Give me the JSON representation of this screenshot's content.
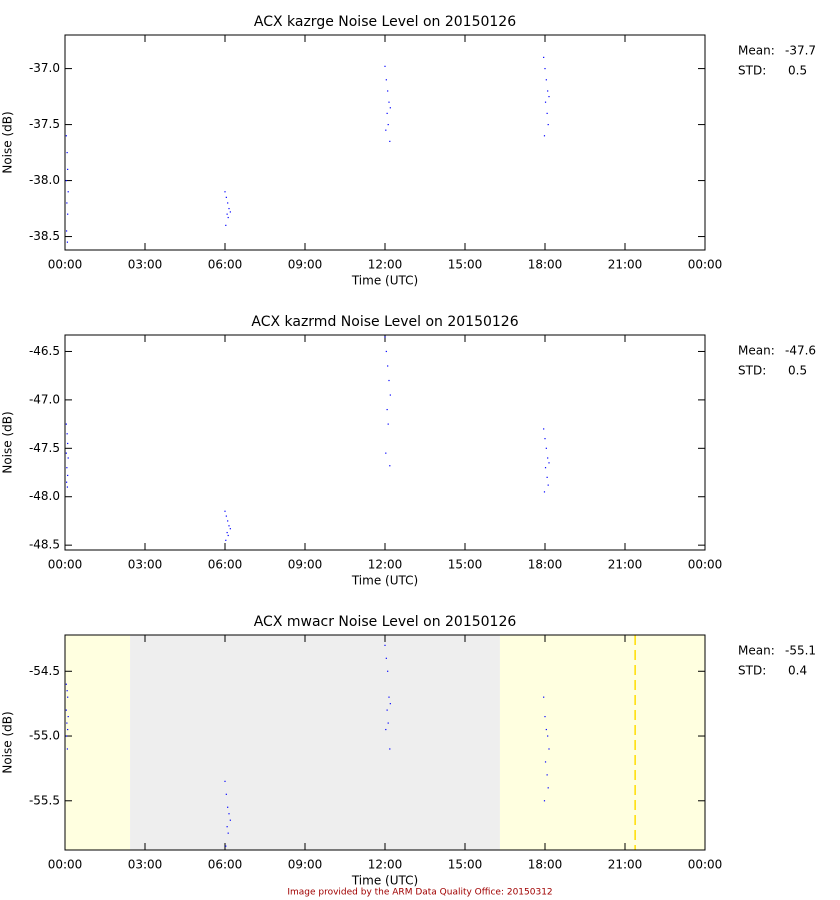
{
  "chart_data": [
    {
      "type": "scatter",
      "title": "ACX kazrge Noise Level on 20150126",
      "x_label": "Time (UTC)",
      "y_label": "Noise (dB)",
      "xlim": [
        0,
        24
      ],
      "xticks": [
        {
          "value": 0,
          "label": "00:00"
        },
        {
          "value": 3,
          "label": "03:00"
        },
        {
          "value": 6,
          "label": "06:00"
        },
        {
          "value": 9,
          "label": "09:00"
        },
        {
          "value": 12,
          "label": "12:00"
        },
        {
          "value": 15,
          "label": "15:00"
        },
        {
          "value": 18,
          "label": "18:00"
        },
        {
          "value": 21,
          "label": "21:00"
        },
        {
          "value": 24,
          "label": "00:00"
        }
      ],
      "ylim": [
        -38.62,
        -36.7
      ],
      "yticks": [
        {
          "value": -38.5,
          "label": "-38.5"
        },
        {
          "value": -38,
          "label": "-38.0"
        },
        {
          "value": -37.5,
          "label": "-37.5"
        },
        {
          "value": -37,
          "label": "-37.0"
        }
      ],
      "stats": {
        "mean_label": "Mean:",
        "mean": -37.7,
        "std_label": "STD:",
        "std": 0.5
      },
      "series": [
        {
          "color": "#0000ff",
          "x": [
            0.05,
            0.08,
            0.1,
            0.05,
            0.12,
            0.07,
            0.1,
            0.06,
            0.09,
            6.0,
            6.05,
            6.1,
            6.15,
            6.2,
            6.08,
            6.12,
            6.03,
            12.0,
            12.05,
            12.1,
            12.15,
            12.2,
            12.08,
            12.12,
            12.03,
            12.18,
            17.95,
            18.0,
            18.05,
            18.1,
            18.15,
            18.02,
            18.08,
            18.12,
            17.98
          ],
          "values": [
            -37.6,
            -37.75,
            -37.9,
            -38.0,
            -38.1,
            -38.2,
            -38.3,
            -38.45,
            -38.55,
            -38.1,
            -38.15,
            -38.2,
            -38.25,
            -38.28,
            -38.3,
            -38.33,
            -38.4,
            -36.98,
            -37.1,
            -37.2,
            -37.3,
            -37.35,
            -37.4,
            -37.5,
            -37.55,
            -37.65,
            -36.9,
            -37.0,
            -37.1,
            -37.2,
            -37.25,
            -37.3,
            -37.4,
            -37.5,
            -37.6
          ]
        }
      ]
    },
    {
      "type": "scatter",
      "title": "ACX kazrmd Noise Level on 20150126",
      "x_label": "Time (UTC)",
      "y_label": "Noise (dB)",
      "xlim": [
        0,
        24
      ],
      "xticks": [
        {
          "value": 0,
          "label": "00:00"
        },
        {
          "value": 3,
          "label": "03:00"
        },
        {
          "value": 6,
          "label": "06:00"
        },
        {
          "value": 9,
          "label": "09:00"
        },
        {
          "value": 12,
          "label": "12:00"
        },
        {
          "value": 15,
          "label": "15:00"
        },
        {
          "value": 18,
          "label": "18:00"
        },
        {
          "value": 21,
          "label": "21:00"
        },
        {
          "value": 24,
          "label": "00:00"
        }
      ],
      "ylim": [
        -48.55,
        -46.33
      ],
      "yticks": [
        {
          "value": -48.5,
          "label": "-48.5"
        },
        {
          "value": -48,
          "label": "-48.0"
        },
        {
          "value": -47.5,
          "label": "-47.5"
        },
        {
          "value": -47,
          "label": "-47.0"
        },
        {
          "value": -46.5,
          "label": "-46.5"
        }
      ],
      "stats": {
        "mean_label": "Mean:",
        "mean": -47.6,
        "std_label": "STD:",
        "std": 0.5
      },
      "series": [
        {
          "color": "#0000ff",
          "x": [
            0.05,
            0.08,
            0.1,
            0.05,
            0.12,
            0.07,
            0.1,
            0.06,
            0.09,
            6.0,
            6.05,
            6.1,
            6.15,
            6.2,
            6.08,
            6.12,
            6.03,
            12.0,
            12.05,
            12.1,
            12.15,
            12.2,
            12.08,
            12.12,
            12.03,
            12.18,
            17.95,
            18.0,
            18.05,
            18.1,
            18.15,
            18.02,
            18.08,
            18.12,
            17.98
          ],
          "values": [
            -47.25,
            -47.35,
            -47.45,
            -47.55,
            -47.6,
            -47.7,
            -47.78,
            -47.85,
            -47.9,
            -48.15,
            -48.2,
            -48.25,
            -48.3,
            -48.33,
            -48.37,
            -48.4,
            -48.45,
            -46.35,
            -46.5,
            -46.65,
            -46.8,
            -46.95,
            -47.1,
            -47.25,
            -47.55,
            -47.68,
            -47.3,
            -47.4,
            -47.5,
            -47.6,
            -47.65,
            -47.7,
            -47.8,
            -47.88,
            -47.95
          ]
        }
      ]
    },
    {
      "type": "scatter",
      "title": "ACX mwacr Noise Level on 20150126",
      "x_label": "Time (UTC)",
      "y_label": "Noise (dB)",
      "xlim": [
        0,
        24
      ],
      "xticks": [
        {
          "value": 0,
          "label": "00:00"
        },
        {
          "value": 3,
          "label": "03:00"
        },
        {
          "value": 6,
          "label": "06:00"
        },
        {
          "value": 9,
          "label": "09:00"
        },
        {
          "value": 12,
          "label": "12:00"
        },
        {
          "value": 15,
          "label": "15:00"
        },
        {
          "value": 18,
          "label": "18:00"
        },
        {
          "value": 21,
          "label": "21:00"
        },
        {
          "value": 24,
          "label": "00:00"
        }
      ],
      "ylim": [
        -55.88,
        -54.22
      ],
      "yticks": [
        {
          "value": -55.5,
          "label": "-55.5"
        },
        {
          "value": -55,
          "label": "-55.0"
        },
        {
          "value": -54.5,
          "label": "-54.5"
        }
      ],
      "stats": {
        "mean_label": "Mean:",
        "mean": -55.1,
        "std_label": "STD:",
        "std": 0.4
      },
      "shaded_regions": [
        {
          "start": 0,
          "end": 2.44,
          "color": "#ffffe0"
        },
        {
          "start": 2.44,
          "end": 16.31,
          "color": "#eeeeee"
        },
        {
          "start": 16.31,
          "end": 24,
          "color": "#ffffe0"
        }
      ],
      "vline": {
        "x": 21.38,
        "color": "#ffdd00"
      },
      "series": [
        {
          "color": "#0000ff",
          "x": [
            0.05,
            0.08,
            0.1,
            0.05,
            0.12,
            0.07,
            0.1,
            0.06,
            0.09,
            6.0,
            6.05,
            6.1,
            6.15,
            6.2,
            6.08,
            6.12,
            6.03,
            12.0,
            12.05,
            12.1,
            12.15,
            12.2,
            12.08,
            12.12,
            12.03,
            12.18,
            17.95,
            18.0,
            18.05,
            18.1,
            18.15,
            18.02,
            18.08,
            18.12,
            17.98
          ],
          "values": [
            -54.6,
            -54.65,
            -54.7,
            -54.8,
            -54.85,
            -54.9,
            -54.95,
            -55.0,
            -55.1,
            -55.35,
            -55.45,
            -55.55,
            -55.6,
            -55.65,
            -55.7,
            -55.75,
            -55.85,
            -54.3,
            -54.4,
            -54.5,
            -54.7,
            -54.75,
            -54.8,
            -54.9,
            -54.95,
            -55.1,
            -54.7,
            -54.85,
            -54.95,
            -55.0,
            -55.1,
            -55.2,
            -55.3,
            -55.4,
            -55.5
          ]
        }
      ]
    }
  ],
  "footer": "Image provided by the ARM Data Quality Office: 20150312"
}
